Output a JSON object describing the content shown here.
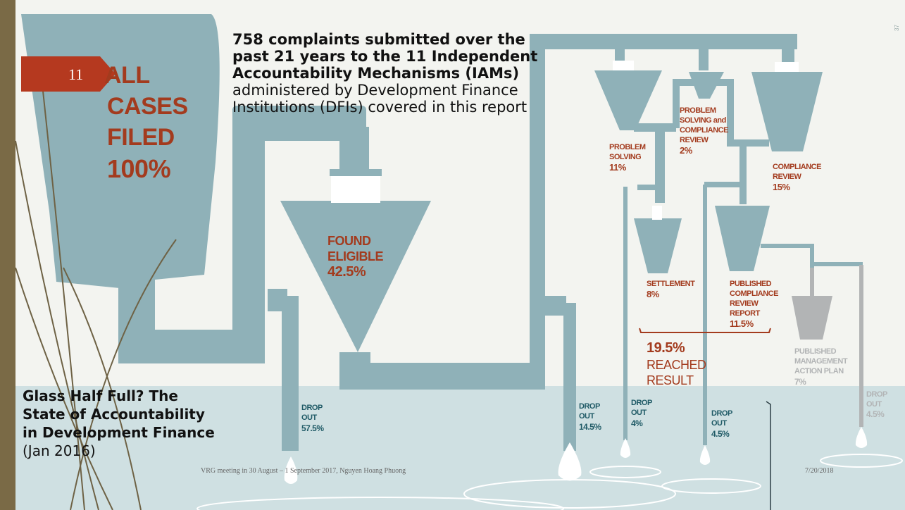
{
  "slide": {
    "number": "11",
    "page_mark": "37",
    "headline_bold": "758 complaints submitted over the past 21 years to the 11 Independent Accountability Mechanisms (IAMs)",
    "headline_rest": "administered by Development Finance Institutions (DFIs) covered in this report",
    "source_bold": "Glass Half Full? The State of Accountability in Development Finance",
    "source_rest": "(Jan 2016)",
    "footer_left": "VRG meeting in 30 August – 1 September 2017, Nguyen Hoang Phuong",
    "footer_right": "7/20/2018"
  },
  "infographic": {
    "all_cases": {
      "line1": "ALL",
      "line2": "CASES",
      "line3": "FILED",
      "pct": "100%"
    },
    "found_eligible": {
      "line1": "FOUND",
      "line2": "ELIGIBLE",
      "pct": "42.5%"
    },
    "problem_solving": {
      "line1": "PROBLEM",
      "line2": "SOLVING",
      "pct": "11%"
    },
    "ps_and_cr": {
      "line1": "PROBLEM",
      "line2": "SOLVING and",
      "line3": "COMPLIANCE",
      "line4": "REVIEW",
      "pct": "2%"
    },
    "compliance_review": {
      "line1": "COMPLIANCE",
      "line2": "REVIEW",
      "pct": "15%"
    },
    "settlement": {
      "line1": "SETTLEMENT",
      "pct": "8%"
    },
    "published_cr": {
      "line1": "PUBLISHED",
      "line2": "COMPLIANCE",
      "line3": "REVIEW",
      "line4": "REPORT",
      "pct": "11.5%"
    },
    "reached": {
      "pct": "19.5%",
      "line1": "REACHED",
      "line2": "RESULT"
    },
    "pmap": {
      "line1": "PUBLISHED",
      "line2": "MANAGEMENT",
      "line3": "ACTION PLAN",
      "pct": "7%"
    },
    "dropouts": [
      {
        "line1": "DROP",
        "line2": "OUT",
        "pct": "57.5%"
      },
      {
        "line1": "DROP",
        "line2": "OUT",
        "pct": "14.5%"
      },
      {
        "line1": "DROP",
        "line2": "OUT",
        "pct": "4%"
      },
      {
        "line1": "DROP",
        "line2": "OUT",
        "pct": "4.5%"
      },
      {
        "line1": "DROP",
        "line2": "OUT",
        "pct": "4.5%"
      }
    ]
  },
  "colors": {
    "pipe": "#8fb1b8",
    "label": "#a33b1e",
    "drop_label": "#1f5a66",
    "grey": "#b2b4b5",
    "water": "#cfe0e2",
    "sidebar": "#7a6a46",
    "tab": "#b5391f"
  }
}
